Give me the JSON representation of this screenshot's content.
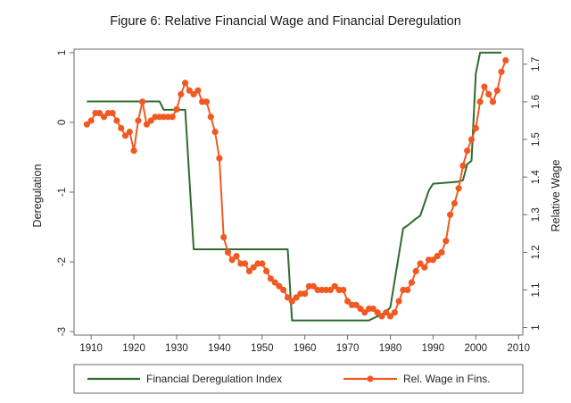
{
  "chart_data": {
    "type": "line",
    "title": "Figure 6: Relative Financial Wage and Financial Deregulation",
    "xlabel": "",
    "ylabel_left": "Deregulation",
    "ylabel_right": "Relative Wage",
    "xlim": [
      1906,
      2011
    ],
    "ylim_left": [
      -3.05,
      1.05
    ],
    "ylim_right": [
      0.98,
      1.74
    ],
    "x_ticks": [
      1910,
      1920,
      1930,
      1940,
      1950,
      1960,
      1970,
      1980,
      1990,
      2000,
      2010
    ],
    "y_left_ticks": [
      1,
      0,
      -1,
      -2,
      -3
    ],
    "y_right_ticks": [
      1.7,
      1.6,
      1.5,
      1.4,
      1.3,
      1.2,
      1.1,
      1
    ],
    "grid": false,
    "legend_position": "bottom",
    "series": [
      {
        "name": "Financial Deregulation Index",
        "axis": "left",
        "color": "#2e6b2e",
        "marker": "none",
        "points": [
          [
            1909,
            0.3
          ],
          [
            1926,
            0.3
          ],
          [
            1927,
            0.18
          ],
          [
            1932,
            0.18
          ],
          [
            1934,
            -1.82
          ],
          [
            1956,
            -1.82
          ],
          [
            1957,
            -2.84
          ],
          [
            1975,
            -2.84
          ],
          [
            1979,
            -2.72
          ],
          [
            1980,
            -2.65
          ],
          [
            1983,
            -1.52
          ],
          [
            1984,
            -1.48
          ],
          [
            1986,
            -1.38
          ],
          [
            1987,
            -1.34
          ],
          [
            1989,
            -0.98
          ],
          [
            1990,
            -0.88
          ],
          [
            1992,
            -0.87
          ],
          [
            1996,
            -0.85
          ],
          [
            1997,
            -0.83
          ],
          [
            1998,
            -0.6
          ],
          [
            1999,
            -0.55
          ],
          [
            2000,
            0.7
          ],
          [
            2001,
            1.0
          ],
          [
            2006,
            1.0
          ]
        ]
      },
      {
        "name": "Rel. Wage in Fins.",
        "axis": "right",
        "color": "#f05a22",
        "marker": "circle",
        "points": [
          [
            1909,
            1.54
          ],
          [
            1910,
            1.55
          ],
          [
            1911,
            1.57
          ],
          [
            1912,
            1.57
          ],
          [
            1913,
            1.56
          ],
          [
            1914,
            1.57
          ],
          [
            1915,
            1.57
          ],
          [
            1916,
            1.55
          ],
          [
            1917,
            1.53
          ],
          [
            1918,
            1.51
          ],
          [
            1919,
            1.52
          ],
          [
            1920,
            1.47
          ],
          [
            1921,
            1.55
          ],
          [
            1922,
            1.6
          ],
          [
            1923,
            1.54
          ],
          [
            1924,
            1.55
          ],
          [
            1925,
            1.56
          ],
          [
            1926,
            1.56
          ],
          [
            1927,
            1.56
          ],
          [
            1928,
            1.56
          ],
          [
            1929,
            1.56
          ],
          [
            1930,
            1.58
          ],
          [
            1931,
            1.62
          ],
          [
            1932,
            1.65
          ],
          [
            1933,
            1.63
          ],
          [
            1934,
            1.62
          ],
          [
            1935,
            1.63
          ],
          [
            1936,
            1.6
          ],
          [
            1937,
            1.6
          ],
          [
            1938,
            1.56
          ],
          [
            1939,
            1.52
          ],
          [
            1940,
            1.45
          ],
          [
            1941,
            1.24
          ],
          [
            1942,
            1.2
          ],
          [
            1943,
            1.18
          ],
          [
            1944,
            1.19
          ],
          [
            1945,
            1.17
          ],
          [
            1946,
            1.17
          ],
          [
            1947,
            1.15
          ],
          [
            1948,
            1.16
          ],
          [
            1949,
            1.17
          ],
          [
            1950,
            1.17
          ],
          [
            1951,
            1.15
          ],
          [
            1952,
            1.13
          ],
          [
            1953,
            1.12
          ],
          [
            1954,
            1.11
          ],
          [
            1955,
            1.1
          ],
          [
            1956,
            1.08
          ],
          [
            1957,
            1.07
          ],
          [
            1958,
            1.08
          ],
          [
            1959,
            1.09
          ],
          [
            1960,
            1.09
          ],
          [
            1961,
            1.11
          ],
          [
            1962,
            1.11
          ],
          [
            1963,
            1.1
          ],
          [
            1964,
            1.1
          ],
          [
            1965,
            1.1
          ],
          [
            1966,
            1.1
          ],
          [
            1967,
            1.11
          ],
          [
            1968,
            1.1
          ],
          [
            1969,
            1.1
          ],
          [
            1970,
            1.07
          ],
          [
            1971,
            1.06
          ],
          [
            1972,
            1.06
          ],
          [
            1973,
            1.05
          ],
          [
            1974,
            1.04
          ],
          [
            1975,
            1.05
          ],
          [
            1976,
            1.05
          ],
          [
            1977,
            1.04
          ],
          [
            1978,
            1.03
          ],
          [
            1979,
            1.04
          ],
          [
            1980,
            1.03
          ],
          [
            1981,
            1.04
          ],
          [
            1982,
            1.07
          ],
          [
            1983,
            1.1
          ],
          [
            1984,
            1.1
          ],
          [
            1985,
            1.12
          ],
          [
            1986,
            1.15
          ],
          [
            1987,
            1.17
          ],
          [
            1988,
            1.16
          ],
          [
            1989,
            1.18
          ],
          [
            1990,
            1.18
          ],
          [
            1991,
            1.19
          ],
          [
            1992,
            1.2
          ],
          [
            1993,
            1.23
          ],
          [
            1994,
            1.3
          ],
          [
            1995,
            1.33
          ],
          [
            1996,
            1.37
          ],
          [
            1997,
            1.43
          ],
          [
            1998,
            1.47
          ],
          [
            1999,
            1.5
          ],
          [
            2000,
            1.53
          ],
          [
            2001,
            1.6
          ],
          [
            2002,
            1.64
          ],
          [
            2003,
            1.62
          ],
          [
            2004,
            1.6
          ],
          [
            2005,
            1.63
          ],
          [
            2006,
            1.68
          ],
          [
            2007,
            1.71
          ]
        ]
      }
    ]
  }
}
